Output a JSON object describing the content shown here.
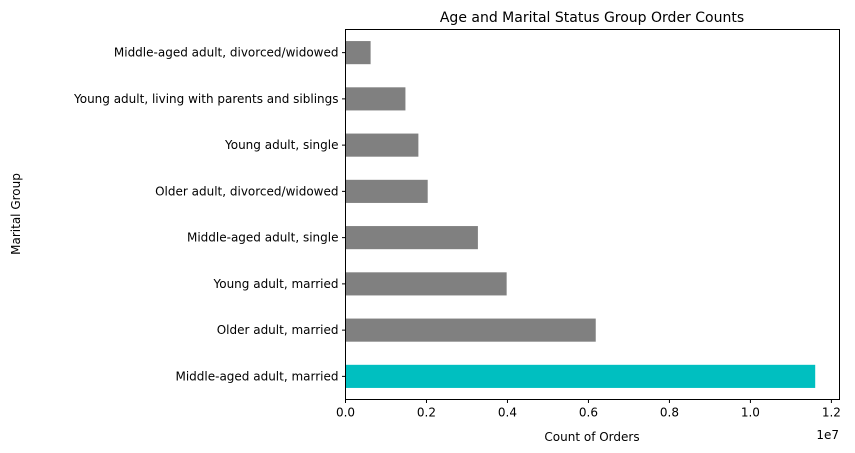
{
  "chart_data": {
    "type": "bar",
    "orientation": "horizontal",
    "title": "Age and Marital Status Group Order Counts",
    "xlabel": "Count of Orders",
    "ylabel": "Marital Group",
    "x_offset_label": "1e7",
    "xlim": [
      0,
      1.22
    ],
    "x_ticks": [
      "0.0",
      "0.2",
      "0.4",
      "0.6",
      "0.8",
      "1.0",
      "1.2"
    ],
    "x_tick_values": [
      0.0,
      0.2,
      0.4,
      0.6,
      0.8,
      1.0,
      1.2
    ],
    "categories": [
      "Middle-aged adult, married",
      "Older adult, married",
      "Young adult, married",
      "Middle-aged adult, single",
      "Older adult, divorced/widowed",
      "Young adult, single",
      "Young adult, living with parents and siblings",
      "Middle-aged adult, divorced/widowed"
    ],
    "values": [
      11600000,
      6180000,
      3980000,
      3270000,
      2030000,
      1800000,
      1480000,
      620000
    ],
    "colors": [
      "#00bfc0",
      "#808080",
      "#808080",
      "#808080",
      "#808080",
      "#808080",
      "#808080",
      "#808080"
    ],
    "grid": false,
    "legend": false
  }
}
